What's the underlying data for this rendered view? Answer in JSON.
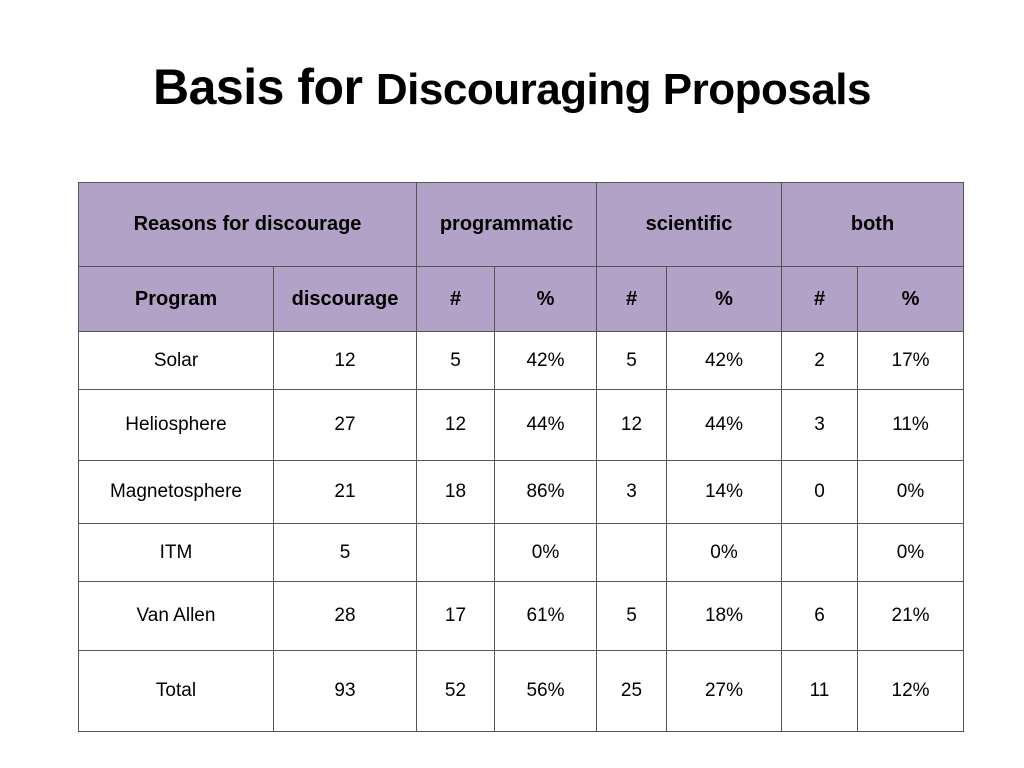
{
  "slide": {
    "title_main": "Basis for ",
    "title_rest": "Discouraging Proposals"
  },
  "colors": {
    "header_fill": "#b3a2c7",
    "border": "#555555"
  },
  "table": {
    "group_headers": {
      "reasons": "Reasons for discourage",
      "programmatic": "programmatic",
      "scientific": "scientific",
      "both": "both"
    },
    "sub_headers": [
      "Program",
      "discourage",
      "#",
      "%",
      "#",
      "%",
      "#",
      "%"
    ],
    "rows": [
      [
        "Solar",
        "12",
        "5",
        "42%",
        "5",
        "42%",
        "2",
        "17%"
      ],
      [
        "Heliosphere",
        "27",
        "12",
        "44%",
        "12",
        "44%",
        "3",
        "11%"
      ],
      [
        "Magnetosphere",
        "21",
        "18",
        "86%",
        "3",
        "14%",
        "0",
        "0%"
      ],
      [
        "ITM",
        "5",
        "",
        "0%",
        "",
        "0%",
        "",
        "0%"
      ],
      [
        "Van Allen",
        "28",
        "17",
        "61%",
        "5",
        "18%",
        "6",
        "21%"
      ],
      [
        "Total",
        "93",
        "52",
        "56%",
        "25",
        "27%",
        "11",
        "12%"
      ]
    ]
  }
}
